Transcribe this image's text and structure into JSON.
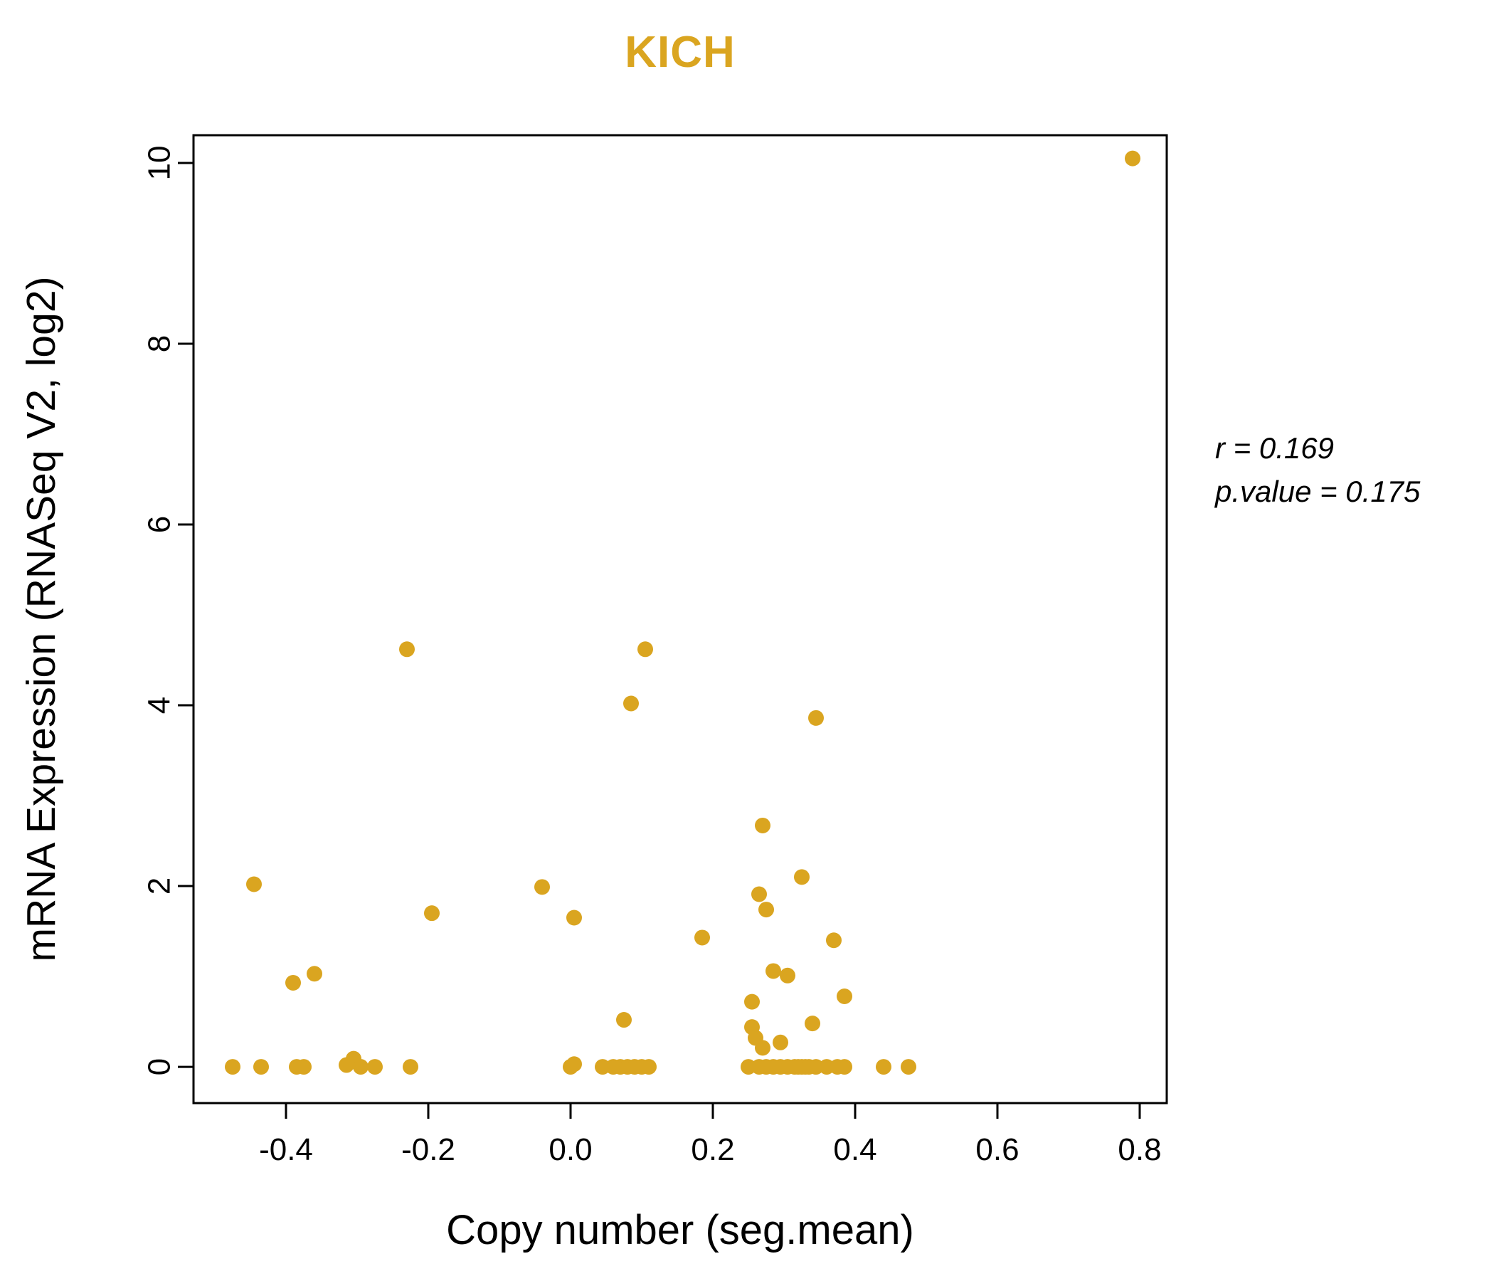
{
  "chart_data": {
    "type": "scatter",
    "title": "KICH",
    "xlabel": "Copy number (seg.mean)",
    "ylabel": "mRNA Expression (RNASeq V2, log2)",
    "annotation": {
      "r_text": "r = 0.169",
      "p_text": "p.value = 0.175"
    },
    "xlim": [
      -0.53,
      0.838
    ],
    "ylim": [
      -0.401,
      10.307
    ],
    "xticks": {
      "values": [
        -0.4,
        -0.2,
        0.0,
        0.2,
        0.4,
        0.6,
        0.8
      ],
      "labels": [
        "-0.4",
        "-0.2",
        "0.0",
        "0.2",
        "0.4",
        "0.6",
        "0.8"
      ]
    },
    "yticks": {
      "values": [
        0,
        2,
        4,
        6,
        8,
        10
      ],
      "labels": [
        "0",
        "2",
        "4",
        "6",
        "8",
        "10"
      ]
    },
    "grid": false,
    "legend": "none",
    "point_color": "#DAA520",
    "title_color": "#DAA520",
    "axis_color": "#000000",
    "points": [
      [
        0.79,
        10.05
      ],
      [
        -0.23,
        4.62
      ],
      [
        0.105,
        4.62
      ],
      [
        0.085,
        4.02
      ],
      [
        0.345,
        3.86
      ],
      [
        0.27,
        2.67
      ],
      [
        0.325,
        2.1
      ],
      [
        -0.445,
        2.02
      ],
      [
        -0.04,
        1.99
      ],
      [
        0.265,
        1.91
      ],
      [
        0.275,
        1.74
      ],
      [
        -0.195,
        1.7
      ],
      [
        0.005,
        1.65
      ],
      [
        0.185,
        1.43
      ],
      [
        0.37,
        1.4
      ],
      [
        -0.36,
        1.03
      ],
      [
        0.285,
        1.06
      ],
      [
        0.305,
        1.01
      ],
      [
        -0.39,
        0.93
      ],
      [
        0.385,
        0.78
      ],
      [
        0.255,
        0.72
      ],
      [
        0.075,
        0.52
      ],
      [
        0.34,
        0.48
      ],
      [
        0.255,
        0.44
      ],
      [
        0.26,
        0.32
      ],
      [
        0.295,
        0.27
      ],
      [
        0.27,
        0.21
      ],
      [
        -0.475,
        0
      ],
      [
        -0.435,
        0
      ],
      [
        -0.385,
        0
      ],
      [
        -0.375,
        0
      ],
      [
        -0.315,
        0.02
      ],
      [
        -0.305,
        0.09
      ],
      [
        -0.295,
        0
      ],
      [
        -0.275,
        0
      ],
      [
        -0.225,
        0
      ],
      [
        0.0,
        0
      ],
      [
        0.005,
        0.03
      ],
      [
        0.045,
        0
      ],
      [
        0.06,
        0
      ],
      [
        0.07,
        0
      ],
      [
        0.08,
        0
      ],
      [
        0.09,
        0
      ],
      [
        0.1,
        0
      ],
      [
        0.11,
        0
      ],
      [
        0.25,
        0
      ],
      [
        0.265,
        0
      ],
      [
        0.275,
        0
      ],
      [
        0.285,
        0
      ],
      [
        0.295,
        0
      ],
      [
        0.305,
        0
      ],
      [
        0.315,
        0
      ],
      [
        0.32,
        0
      ],
      [
        0.325,
        0
      ],
      [
        0.33,
        0
      ],
      [
        0.335,
        0
      ],
      [
        0.345,
        0
      ],
      [
        0.36,
        0
      ],
      [
        0.375,
        0
      ],
      [
        0.385,
        0
      ],
      [
        0.44,
        0
      ],
      [
        0.475,
        0
      ]
    ]
  }
}
